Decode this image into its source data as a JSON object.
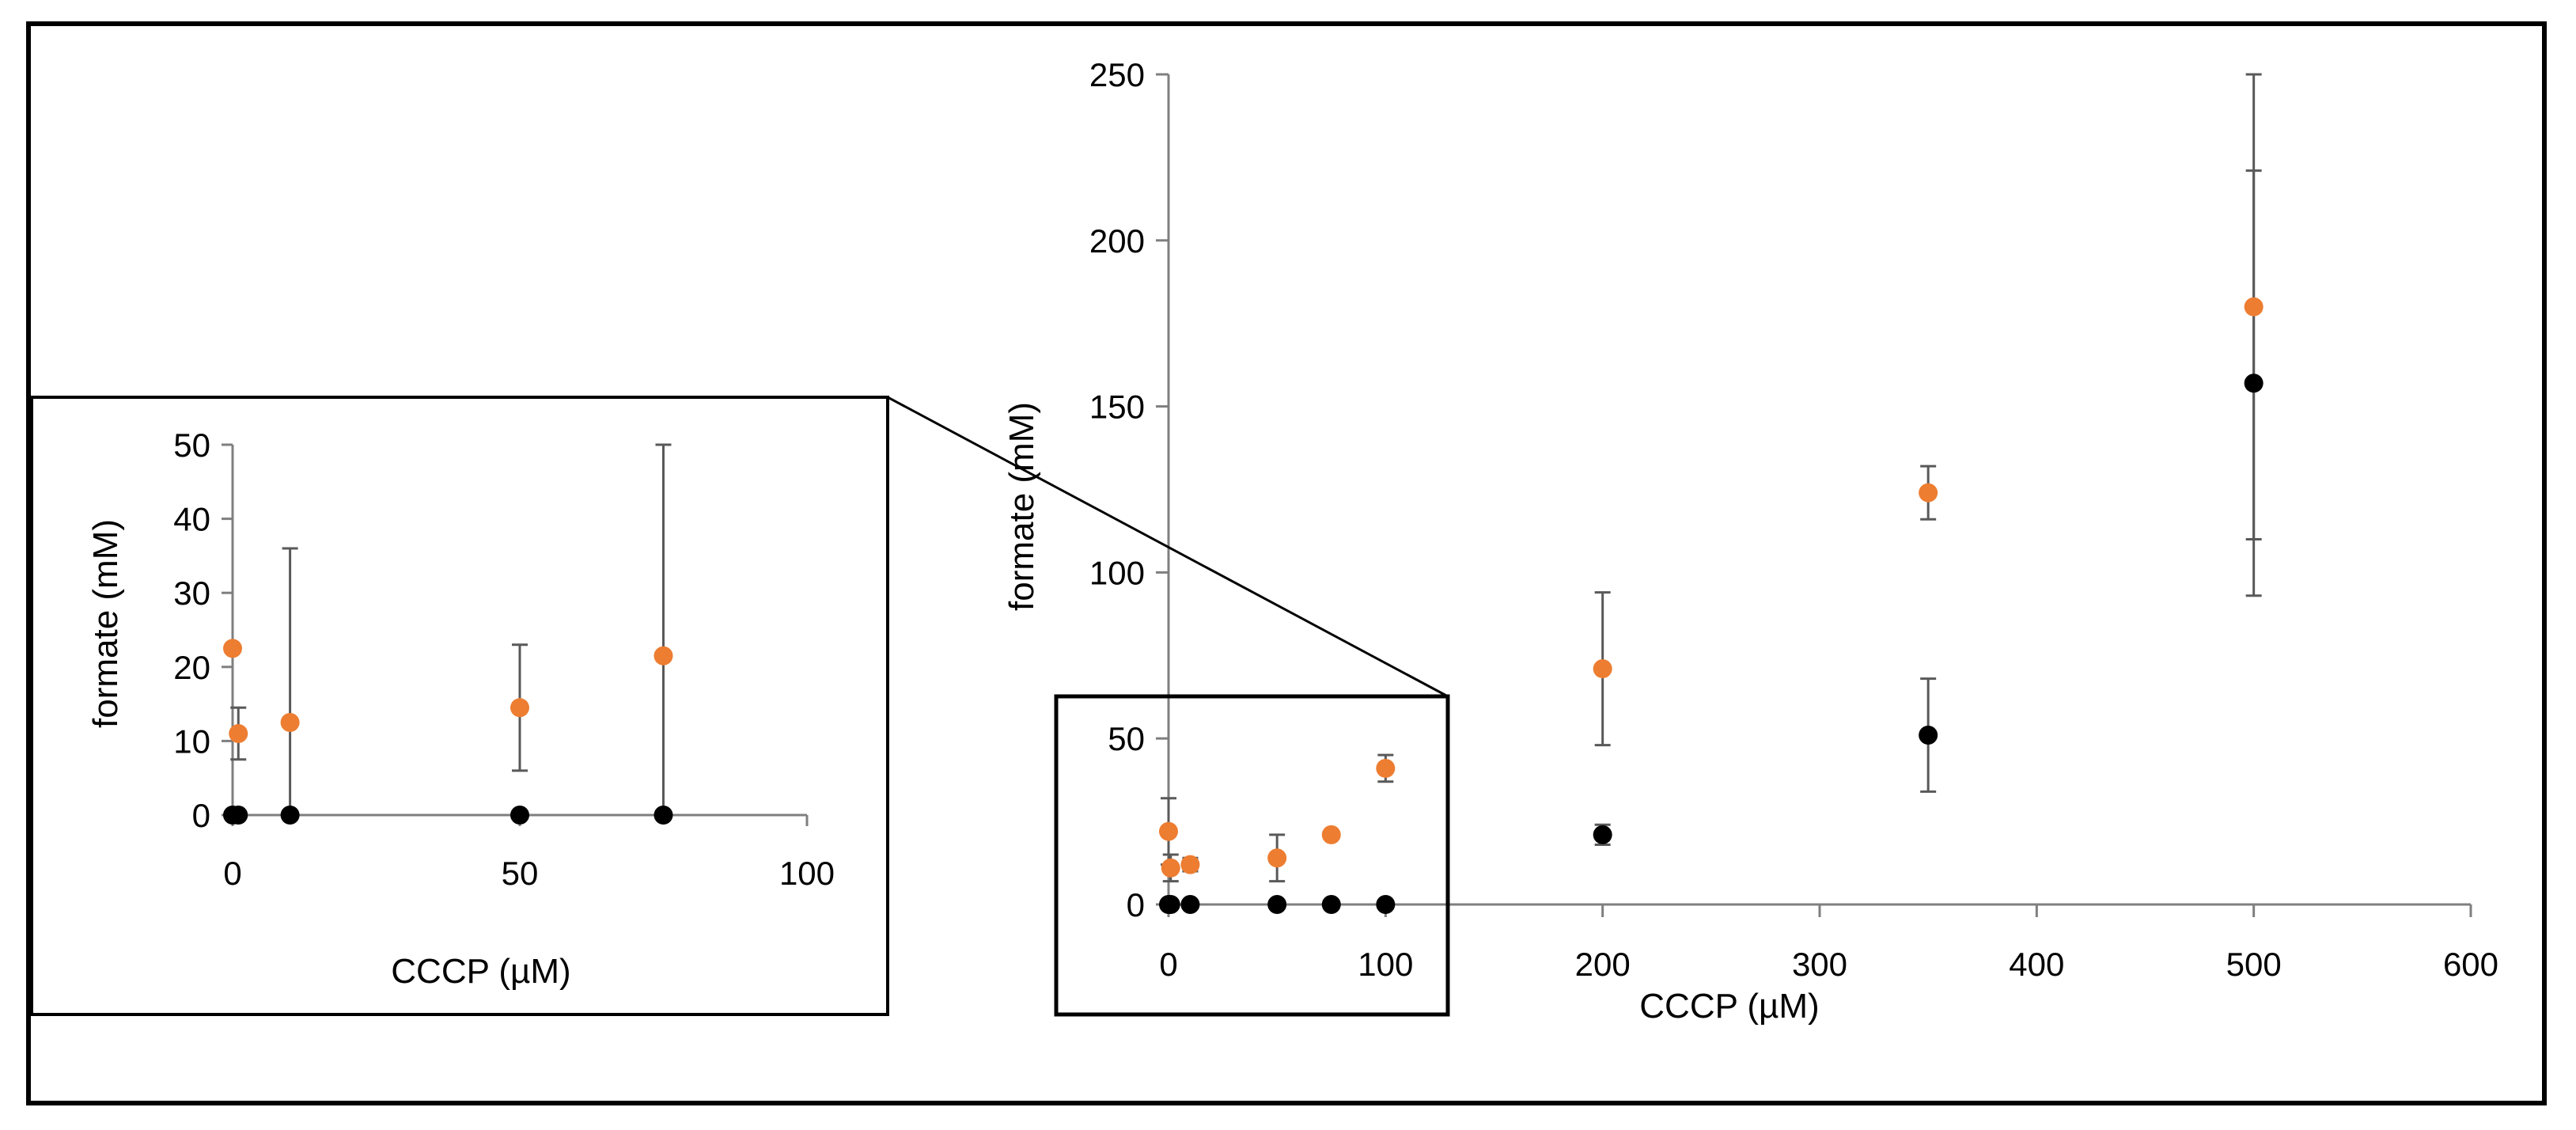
{
  "chart_data": [
    {
      "type": "scatter",
      "title": "",
      "xlabel": "CCCP (µM)",
      "ylabel": "formate (mM)",
      "xlim": [
        0,
        600
      ],
      "ylim": [
        0,
        250
      ],
      "xticks": [
        0,
        100,
        200,
        300,
        400,
        500,
        600
      ],
      "yticks": [
        0,
        50,
        100,
        150,
        200,
        250
      ],
      "grid": false,
      "legend": "none",
      "series": [
        {
          "color": "#ED7D31",
          "points": [
            {
              "x": 0,
              "y": 22,
              "err": 10
            },
            {
              "x": 1,
              "y": 11,
              "err": 4
            },
            {
              "x": 10,
              "y": 12,
              "err": 2
            },
            {
              "x": 50,
              "y": 14,
              "err": 7
            },
            {
              "x": 75,
              "y": 21,
              "err": 1
            },
            {
              "x": 100,
              "y": 41,
              "err": 4
            },
            {
              "x": 200,
              "y": 71,
              "err": 23
            },
            {
              "x": 350,
              "y": 124,
              "err": 8
            },
            {
              "x": 500,
              "y": 180,
              "err": 70
            }
          ]
        },
        {
          "color": "#000000",
          "points": [
            {
              "x": 0,
              "y": 0,
              "err": 0
            },
            {
              "x": 1,
              "y": 0,
              "err": 0
            },
            {
              "x": 10,
              "y": 0,
              "err": 0
            },
            {
              "x": 50,
              "y": 0,
              "err": 0
            },
            {
              "x": 75,
              "y": 0,
              "err": 0
            },
            {
              "x": 100,
              "y": 0,
              "err": 0
            },
            {
              "x": 200,
              "y": 21,
              "err": 3
            },
            {
              "x": 350,
              "y": 51,
              "err": 17
            },
            {
              "x": 500,
              "y": 157,
              "err": 64
            }
          ]
        }
      ]
    },
    {
      "type": "scatter",
      "title": "",
      "xlabel": "CCCP (µM)",
      "ylabel": "formate (mM)",
      "xlim": [
        0,
        100
      ],
      "ylim": [
        0,
        50
      ],
      "xticks": [
        0,
        50,
        100
      ],
      "yticks": [
        0,
        10,
        20,
        30,
        40,
        50
      ],
      "grid": false,
      "legend": "none",
      "series": [
        {
          "color": "#ED7D31",
          "points": [
            {
              "x": 0,
              "y": 22.5,
              "err": 0
            },
            {
              "x": 1,
              "y": 11,
              "err": 3.5
            },
            {
              "x": 10,
              "y": 12.5,
              "err": 23.5
            },
            {
              "x": 50,
              "y": 14.5,
              "err": 8.5
            },
            {
              "x": 75,
              "y": 21.5,
              "err": 28.5
            }
          ]
        },
        {
          "color": "#000000",
          "points": [
            {
              "x": 0,
              "y": 0,
              "err": 0
            },
            {
              "x": 1,
              "y": 0,
              "err": 0
            },
            {
              "x": 10,
              "y": 0,
              "err": 0
            },
            {
              "x": 50,
              "y": 0,
              "err": 0
            },
            {
              "x": 75,
              "y": 0,
              "err": 0
            }
          ]
        }
      ]
    }
  ]
}
